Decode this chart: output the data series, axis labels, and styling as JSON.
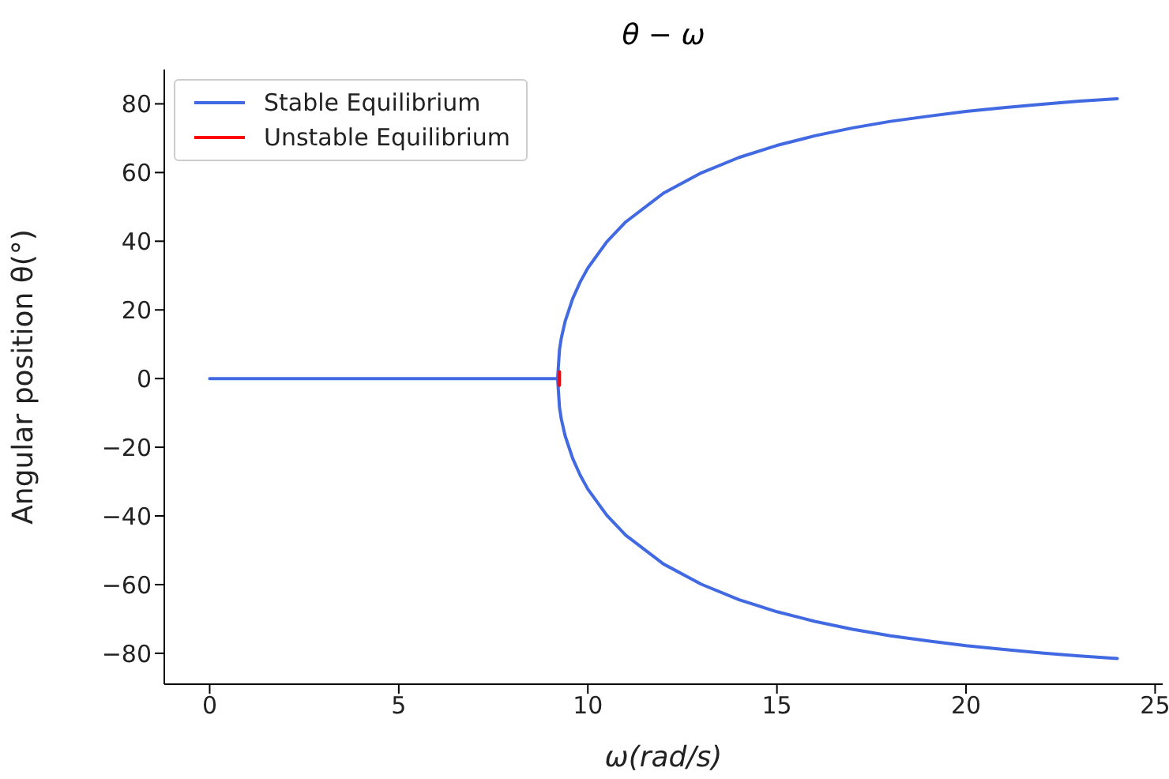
{
  "chart_data": {
    "type": "line",
    "title": "θ − ω",
    "xlabel": "ω(rad/s)",
    "ylabel": "Angular position θ(°)",
    "xlim": [
      -1.2,
      25.2
    ],
    "xticks": [
      0,
      5,
      10,
      15,
      20,
      25
    ],
    "ylim": [
      -89,
      90
    ],
    "yticks": [
      -80,
      -60,
      -40,
      -20,
      0,
      20,
      40,
      60,
      80
    ],
    "legend": "top left",
    "line_style": "solid",
    "series": [
      {
        "name": "Stable Equilibrium",
        "color": "#4169e1",
        "x": [
          0,
          9.2,
          9.25,
          9.3,
          9.4,
          9.6,
          9.8,
          10,
          10.5,
          11,
          12,
          13,
          14,
          15,
          16,
          17,
          18,
          19,
          20,
          21,
          22,
          23,
          24
        ],
        "values": [
          0,
          0,
          8.4,
          11.9,
          16.7,
          23.3,
          28.2,
          32.2,
          39.8,
          45.6,
          54.0,
          59.9,
          64.4,
          67.9,
          70.7,
          73.0,
          74.9,
          76.4,
          77.8,
          78.9,
          79.9,
          80.8,
          81.5
        ]
      },
      {
        "color": "#4169e1",
        "x": [
          9.2,
          9.25,
          9.3,
          9.4,
          9.6,
          9.8,
          10,
          10.5,
          11,
          12,
          13,
          14,
          15,
          16,
          17,
          18,
          19,
          20,
          21,
          22,
          23,
          24
        ],
        "values": [
          0,
          -8.4,
          -11.9,
          -16.7,
          -23.3,
          -28.2,
          -32.2,
          -39.8,
          -45.6,
          -54.0,
          -59.9,
          -64.4,
          -67.9,
          -70.7,
          -73.0,
          -74.9,
          -76.4,
          -77.8,
          -78.9,
          -79.9,
          -80.8,
          -81.5
        ]
      },
      {
        "name": "Unstable Equilibrium",
        "color": "#ff0000",
        "x": [
          9.25,
          9.25
        ],
        "values": [
          -2,
          2
        ]
      }
    ]
  }
}
